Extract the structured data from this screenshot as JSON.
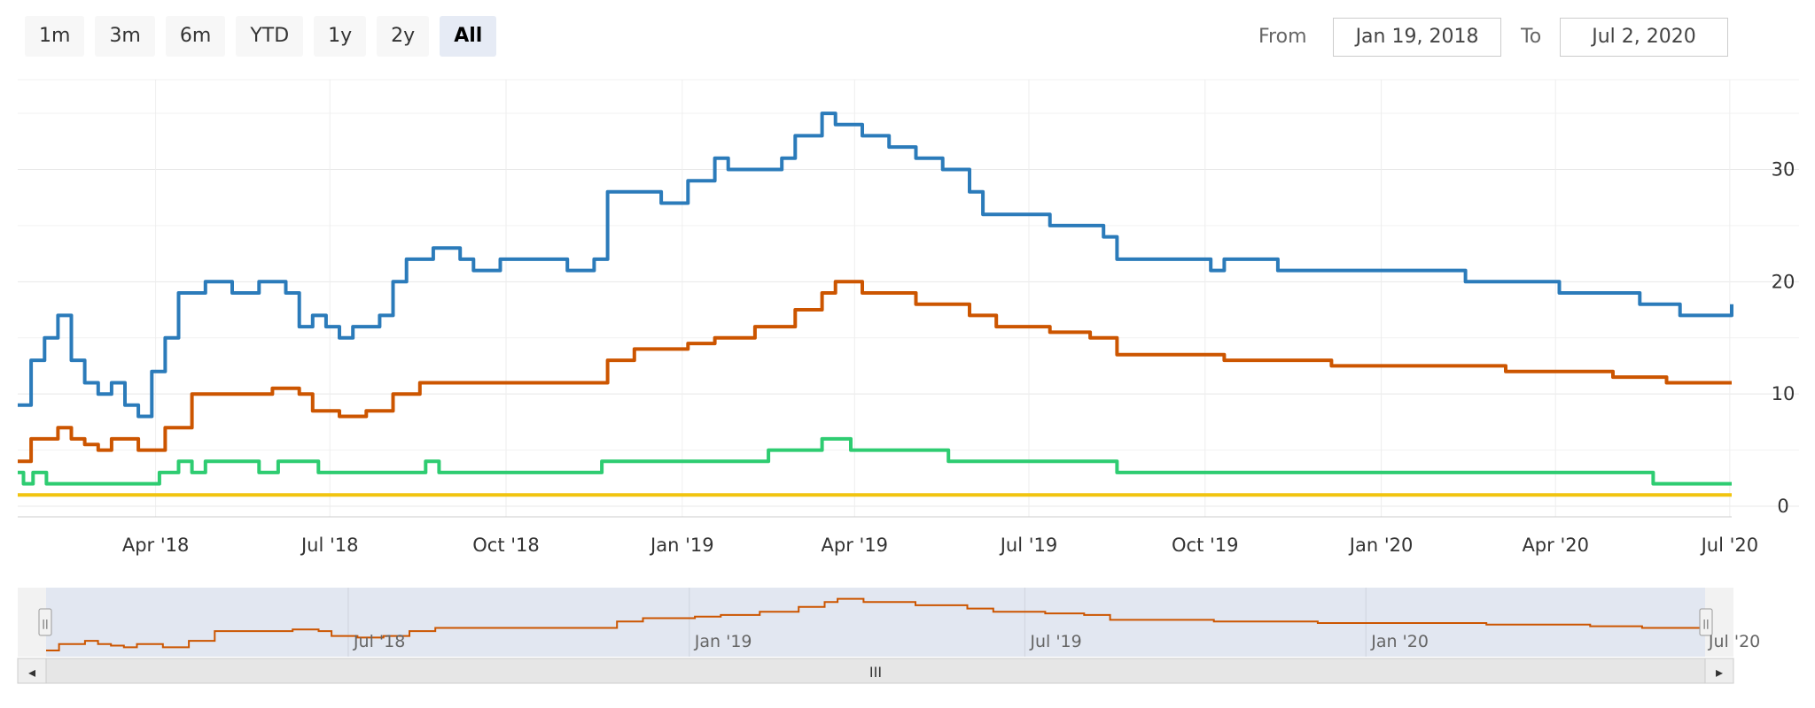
{
  "range_selector": {
    "buttons": [
      {
        "label": "1m"
      },
      {
        "label": "3m"
      },
      {
        "label": "6m"
      },
      {
        "label": "YTD"
      },
      {
        "label": "1y"
      },
      {
        "label": "2y"
      },
      {
        "label": "All",
        "active": true
      }
    ]
  },
  "date_inputs": {
    "from_label": "From",
    "from_value": "Jan 19, 2018",
    "to_label": "To",
    "to_value": "Jul 2, 2020"
  },
  "navigator": {
    "scrollbar_grip": "III",
    "left_arrow": "◂",
    "right_arrow": "▸",
    "handle_glyph": "||",
    "x_ticks": [
      "Jul '18",
      "Jan '19",
      "Jul '19",
      "Jan '20",
      "Jul '20"
    ]
  },
  "chart_data": {
    "type": "line",
    "title": "",
    "xlabel": "",
    "ylabel": "",
    "x_range": [
      "2018-01-19",
      "2020-07-02"
    ],
    "ylim": [
      0,
      38
    ],
    "y_ticks": [
      "0",
      "10",
      "20",
      "30"
    ],
    "y_axis_position": "right",
    "x_ticks": [
      "Apr '18",
      "Jul '18",
      "Oct '18",
      "Jan '19",
      "Apr '19",
      "Jul '19",
      "Oct '19",
      "Jan '20",
      "Apr '20",
      "Jul '20"
    ],
    "grid": true,
    "legend": "none",
    "series": [
      {
        "color": "#2b7bba",
        "points": [
          [
            "2018-01-19",
            9
          ],
          [
            "2018-01-26",
            13
          ],
          [
            "2018-02-02",
            15
          ],
          [
            "2018-02-09",
            17
          ],
          [
            "2018-02-16",
            13
          ],
          [
            "2018-02-23",
            11
          ],
          [
            "2018-03-02",
            10
          ],
          [
            "2018-03-09",
            11
          ],
          [
            "2018-03-16",
            9
          ],
          [
            "2018-03-23",
            8
          ],
          [
            "2018-03-30",
            12
          ],
          [
            "2018-04-06",
            15
          ],
          [
            "2018-04-13",
            19
          ],
          [
            "2018-04-27",
            20
          ],
          [
            "2018-05-11",
            19
          ],
          [
            "2018-05-25",
            20
          ],
          [
            "2018-06-08",
            19
          ],
          [
            "2018-06-15",
            16
          ],
          [
            "2018-06-22",
            17
          ],
          [
            "2018-06-29",
            16
          ],
          [
            "2018-07-06",
            15
          ],
          [
            "2018-07-13",
            16
          ],
          [
            "2018-07-27",
            17
          ],
          [
            "2018-08-03",
            20
          ],
          [
            "2018-08-10",
            22
          ],
          [
            "2018-08-24",
            23
          ],
          [
            "2018-09-07",
            22
          ],
          [
            "2018-09-14",
            21
          ],
          [
            "2018-09-28",
            22
          ],
          [
            "2018-10-12",
            22
          ],
          [
            "2018-11-02",
            21
          ],
          [
            "2018-11-16",
            22
          ],
          [
            "2018-11-23",
            28
          ],
          [
            "2018-12-07",
            28
          ],
          [
            "2018-12-21",
            27
          ],
          [
            "2019-01-04",
            29
          ],
          [
            "2019-01-18",
            31
          ],
          [
            "2019-01-25",
            30
          ],
          [
            "2019-02-08",
            30
          ],
          [
            "2019-02-22",
            31
          ],
          [
            "2019-03-01",
            33
          ],
          [
            "2019-03-15",
            35
          ],
          [
            "2019-03-22",
            34
          ],
          [
            "2019-04-05",
            33
          ],
          [
            "2019-04-19",
            32
          ],
          [
            "2019-05-03",
            31
          ],
          [
            "2019-05-17",
            30
          ],
          [
            "2019-05-31",
            28
          ],
          [
            "2019-06-07",
            26
          ],
          [
            "2019-06-28",
            26
          ],
          [
            "2019-07-12",
            25
          ],
          [
            "2019-07-26",
            25
          ],
          [
            "2019-08-09",
            24
          ],
          [
            "2019-08-16",
            22
          ],
          [
            "2019-09-06",
            22
          ],
          [
            "2019-10-04",
            21
          ],
          [
            "2019-10-11",
            22
          ],
          [
            "2019-11-08",
            21
          ],
          [
            "2019-12-06",
            21
          ],
          [
            "2020-01-03",
            21
          ],
          [
            "2020-01-31",
            21
          ],
          [
            "2020-02-14",
            20
          ],
          [
            "2020-03-13",
            20
          ],
          [
            "2020-04-03",
            19
          ],
          [
            "2020-05-01",
            19
          ],
          [
            "2020-05-15",
            18
          ],
          [
            "2020-06-05",
            17
          ],
          [
            "2020-06-26",
            17
          ],
          [
            "2020-07-02",
            18
          ]
        ]
      },
      {
        "color": "#cc5500",
        "points": [
          [
            "2018-01-19",
            4
          ],
          [
            "2018-01-26",
            6
          ],
          [
            "2018-02-09",
            7
          ],
          [
            "2018-02-16",
            6
          ],
          [
            "2018-02-23",
            5.5
          ],
          [
            "2018-03-02",
            5
          ],
          [
            "2018-03-09",
            6
          ],
          [
            "2018-03-23",
            5
          ],
          [
            "2018-04-06",
            7
          ],
          [
            "2018-04-20",
            10
          ],
          [
            "2018-05-04",
            10
          ],
          [
            "2018-05-18",
            10
          ],
          [
            "2018-06-01",
            10.5
          ],
          [
            "2018-06-15",
            10
          ],
          [
            "2018-06-22",
            8.5
          ],
          [
            "2018-07-06",
            8
          ],
          [
            "2018-07-20",
            8.5
          ],
          [
            "2018-08-03",
            10
          ],
          [
            "2018-08-17",
            11
          ],
          [
            "2018-09-07",
            11
          ],
          [
            "2018-10-05",
            11
          ],
          [
            "2018-11-02",
            11
          ],
          [
            "2018-11-16",
            11
          ],
          [
            "2018-11-23",
            13
          ],
          [
            "2018-12-07",
            14
          ],
          [
            "2019-01-04",
            14.5
          ],
          [
            "2019-01-18",
            15
          ],
          [
            "2019-02-08",
            16
          ],
          [
            "2019-03-01",
            17.5
          ],
          [
            "2019-03-15",
            19
          ],
          [
            "2019-03-22",
            20
          ],
          [
            "2019-04-05",
            19
          ],
          [
            "2019-05-03",
            18
          ],
          [
            "2019-05-31",
            17
          ],
          [
            "2019-06-14",
            16
          ],
          [
            "2019-07-12",
            15.5
          ],
          [
            "2019-08-02",
            15
          ],
          [
            "2019-08-16",
            13.5
          ],
          [
            "2019-09-13",
            13.5
          ],
          [
            "2019-10-11",
            13
          ],
          [
            "2019-11-08",
            13
          ],
          [
            "2019-12-06",
            12.5
          ],
          [
            "2020-01-03",
            12.5
          ],
          [
            "2020-02-07",
            12.5
          ],
          [
            "2020-03-06",
            12
          ],
          [
            "2020-04-03",
            12
          ],
          [
            "2020-05-01",
            11.5
          ],
          [
            "2020-05-29",
            11
          ],
          [
            "2020-06-26",
            11
          ],
          [
            "2020-07-02",
            11
          ]
        ]
      },
      {
        "color": "#2ecc71",
        "points": [
          [
            "2018-01-19",
            3
          ],
          [
            "2018-01-22",
            2
          ],
          [
            "2018-01-27",
            3
          ],
          [
            "2018-02-03",
            2
          ],
          [
            "2018-04-03",
            3
          ],
          [
            "2018-04-13",
            4
          ],
          [
            "2018-04-20",
            3
          ],
          [
            "2018-04-27",
            4
          ],
          [
            "2018-05-25",
            3
          ],
          [
            "2018-06-04",
            4
          ],
          [
            "2018-06-25",
            3
          ],
          [
            "2018-08-20",
            4
          ],
          [
            "2018-08-27",
            3
          ],
          [
            "2018-11-20",
            4
          ],
          [
            "2019-02-15",
            5
          ],
          [
            "2019-03-15",
            6
          ],
          [
            "2019-03-30",
            5
          ],
          [
            "2019-05-20",
            4
          ],
          [
            "2019-08-16",
            3
          ],
          [
            "2020-05-22",
            2
          ],
          [
            "2020-07-02",
            2
          ]
        ]
      },
      {
        "color": "#f1c40f",
        "points": [
          [
            "2018-01-19",
            1
          ],
          [
            "2020-07-02",
            1
          ]
        ]
      }
    ]
  }
}
